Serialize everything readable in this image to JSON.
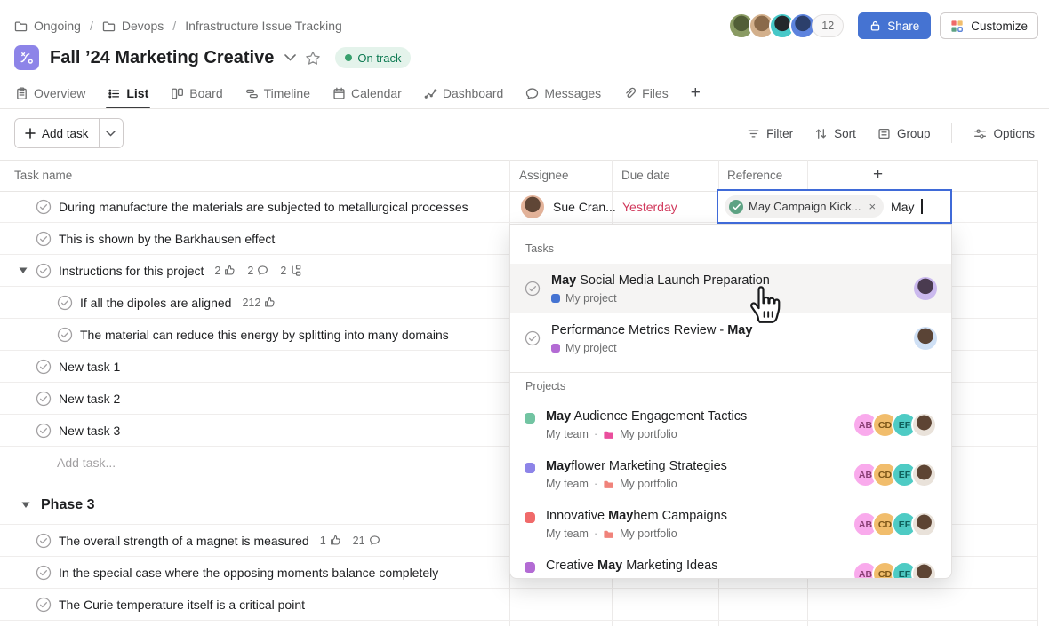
{
  "topbar": {
    "breadcrumb": [
      {
        "label": "Ongoing",
        "icon": "folder-icon"
      },
      {
        "label": "Devops",
        "icon": "folder-icon"
      },
      {
        "label": "Infrastructure Issue Tracking",
        "icon": null
      }
    ],
    "member_count": "12",
    "share_label": "Share",
    "customize_label": "Customize",
    "avatars": [
      {
        "name": "member-1",
        "g1": "#8a9b63",
        "g2": "#515e37"
      },
      {
        "name": "member-2",
        "g1": "#d3b08c",
        "g2": "#8a6a4a"
      },
      {
        "name": "member-3",
        "g1": "#46c8c8",
        "g2": "#23282b"
      },
      {
        "name": "member-4",
        "g1": "#5d83de",
        "g2": "#2c3f6b"
      }
    ]
  },
  "project": {
    "title": "Fall ’24 Marketing Creative",
    "status": "On track",
    "status_bg": "#e4f3eb",
    "status_text_color": "#0d7a52",
    "status_dot_color": "#38a06d",
    "icon_bg": "#8d84e8"
  },
  "tabs": [
    {
      "label": "Overview",
      "icon": "clipboard-icon",
      "active": false
    },
    {
      "label": "List",
      "icon": "list-icon",
      "active": true
    },
    {
      "label": "Board",
      "icon": "board-icon",
      "active": false
    },
    {
      "label": "Timeline",
      "icon": "timeline-icon",
      "active": false
    },
    {
      "label": "Calendar",
      "icon": "calendar-icon",
      "active": false
    },
    {
      "label": "Dashboard",
      "icon": "dashboard-icon",
      "active": false
    },
    {
      "label": "Messages",
      "icon": "messages-icon",
      "active": false
    },
    {
      "label": "Files",
      "icon": "files-icon",
      "active": false
    },
    {
      "label": "+",
      "icon": null,
      "active": false
    }
  ],
  "toolbar": {
    "add_task_label": "Add task",
    "actions": [
      {
        "label": "Filter",
        "icon": "filter-icon"
      },
      {
        "label": "Sort",
        "icon": "sort-icon"
      },
      {
        "label": "Group",
        "icon": "group-icon"
      },
      {
        "label": "Options",
        "icon": "options-icon",
        "divider_before": true
      }
    ]
  },
  "table": {
    "headers": {
      "task": "Task name",
      "assignee": "Assignee",
      "due": "Due date",
      "reference": "Reference",
      "add": "+"
    }
  },
  "rows": [
    {
      "name": "During manufacture the materials are subjected to metallurgical processes",
      "assignee": "Sue Cran...",
      "assignee_g1": "#e3b39a",
      "assignee_g2": "#5f4636",
      "due": "Yesterday",
      "due_color": "#d1395c"
    },
    {
      "name": "This is shown by the Barkhausen effect"
    },
    {
      "name": "Instructions for this project",
      "expandable": true,
      "likes": "2",
      "comments": "2",
      "subtasks": "2"
    },
    {
      "name": "If all the dipoles are aligned",
      "indent": true,
      "likes": "212"
    },
    {
      "name": "The material can reduce this energy by splitting into many domains",
      "indent": true
    },
    {
      "name": "New task 1"
    },
    {
      "name": "New task 2"
    },
    {
      "name": "New task 3"
    },
    {
      "name": "Add task...",
      "placeholder": true
    }
  ],
  "section": {
    "title": "Phase 3",
    "rows": [
      {
        "name": "The overall strength of a magnet is measured",
        "likes": "1",
        "comments": "21"
      },
      {
        "name": "In the special case where the opposing moments balance completely"
      },
      {
        "name": "The Curie temperature itself is a critical point"
      }
    ]
  },
  "reference_editor": {
    "chip_label": "May Campaign Kick...",
    "chip_check_color": "#5da283",
    "remove_label": "×",
    "query": "May",
    "border_color": "#3f6ad8"
  },
  "dropdown": {
    "tasks_header": "Tasks",
    "projects_header": "Projects",
    "tasks": [
      {
        "segments": [
          {
            "text": "May",
            "bold": true
          },
          {
            "text": " Social Media Launch Preparation",
            "bold": false
          }
        ],
        "project_label": "My project",
        "project_color": "#4573d2",
        "hovered": true,
        "avatar_g1": "#cbb9ee",
        "avatar_g2": "#4a3b50"
      },
      {
        "segments": [
          {
            "text": "Performance Metrics Review - ",
            "bold": false
          },
          {
            "text": "May",
            "bold": true
          }
        ],
        "project_label": "My project",
        "project_color": "#b36bd4",
        "hovered": false,
        "avatar_g1": "#cfe0f5",
        "avatar_g2": "#5a4436"
      }
    ],
    "projects": [
      {
        "segments": [
          {
            "text": "May",
            "bold": true
          },
          {
            "text": " Audience Engagement Tactics",
            "bold": false
          }
        ],
        "color": "#72c4a2",
        "team": "My team",
        "portfolio": "My portfolio",
        "folder_color": "#ea4e9d"
      },
      {
        "segments": [
          {
            "text": "May",
            "bold": true
          },
          {
            "text": "flower Marketing Strategies",
            "bold": false
          }
        ],
        "color": "#8d84e8",
        "team": "My team",
        "portfolio": "My portfolio",
        "folder_color": "#f0837b"
      },
      {
        "segments": [
          {
            "text": "Innovative ",
            "bold": false
          },
          {
            "text": "May",
            "bold": true
          },
          {
            "text": "hem Campaigns",
            "bold": false
          }
        ],
        "color": "#f06a6a",
        "team": "My team",
        "portfolio": "My portfolio",
        "folder_color": "#f0837b"
      },
      {
        "segments": [
          {
            "text": "Creative ",
            "bold": false
          },
          {
            "text": "May",
            "bold": true
          },
          {
            "text": " Marketing Ideas",
            "bold": false
          }
        ],
        "color": "#b36bd4",
        "team": null,
        "portfolio": null,
        "folder_color": null
      }
    ],
    "member_chips": [
      {
        "text": "AB",
        "bg": "#f9aaec",
        "fg": "#8a3f74"
      },
      {
        "text": "CD",
        "bg": "#f1bd6c",
        "fg": "#7c5618"
      },
      {
        "text": "EF",
        "bg": "#4ecbc4",
        "fg": "#0e5f5a"
      },
      {
        "text": "",
        "photo": true,
        "g1": "#e9e2da",
        "g2": "#5d4433"
      }
    ]
  }
}
